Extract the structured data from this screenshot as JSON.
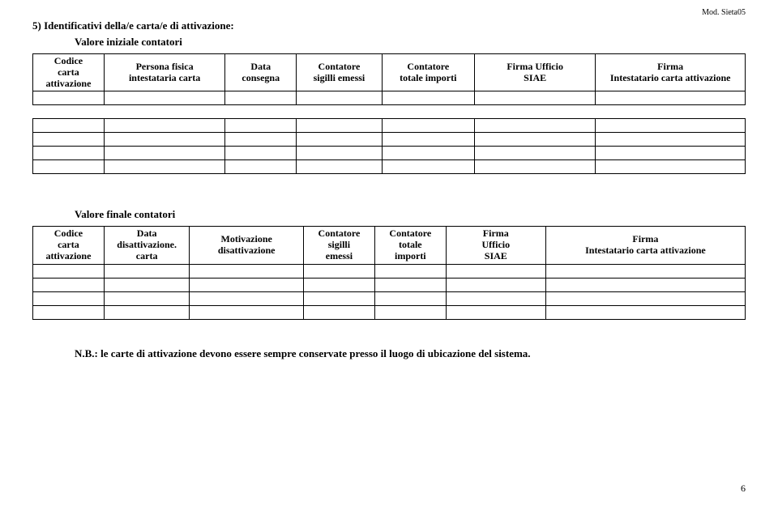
{
  "mod_label": "Mod. Sieta05",
  "section_title": "5) Identificativi della/e carta/e di attivazione:",
  "initial_sub_title": "Valore iniziale contatori",
  "final_sub_title": "Valore finale contatori",
  "footnote": "N.B.: le carte di attivazione devono essere sempre conservate presso il luogo di ubicazione del sistema.",
  "page_number": "6",
  "table1": {
    "col_widths": [
      "10%",
      "17%",
      "10%",
      "12%",
      "13%",
      "17%",
      "21%"
    ],
    "headers": [
      "Codice\ncarta\nattivazione",
      "Persona fisica\nintestataria carta",
      "Data\nconsegna",
      "Contatore\nsigilli emessi",
      "Contatore\ntotale importi",
      "Firma Ufficio\nSIAE",
      "Firma\nIntestatario carta attivazione"
    ],
    "row_count": 5,
    "spacer_after_row": 1
  },
  "table2": {
    "col_widths": [
      "10%",
      "12%",
      "16%",
      "10%",
      "10%",
      "14%",
      "28%"
    ],
    "headers": [
      "Codice\ncarta\nattivazione",
      "Data\ndisattivazione.\ncarta",
      "Motivazione\ndisattivazione",
      "Contatore\nsigilli\nemessi",
      "Contatore\ntotale\nimporti",
      "Firma\nUfficio\nSIAE",
      "Firma\nIntestatario carta attivazione"
    ],
    "row_count": 4
  }
}
